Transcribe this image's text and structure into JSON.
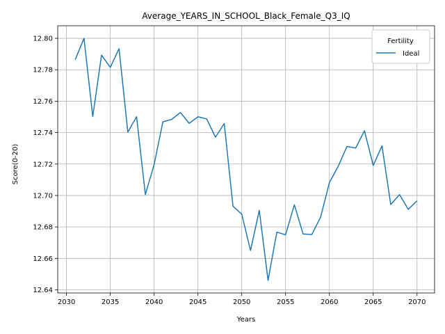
{
  "chart_data": {
    "type": "line",
    "title": "Average_YEARS_IN_SCHOOL_Black_Female_Q3_IQ",
    "xlabel": "Years",
    "ylabel": "Score(0-20)",
    "xlim": [
      2029,
      2072
    ],
    "ylim": [
      12.638,
      12.808
    ],
    "xticks": [
      2030,
      2035,
      2040,
      2045,
      2050,
      2055,
      2060,
      2065,
      2070
    ],
    "yticks": [
      12.64,
      12.66,
      12.68,
      12.7,
      12.72,
      12.74,
      12.76,
      12.78,
      12.8
    ],
    "xtick_labels": [
      "2030",
      "2035",
      "2040",
      "2045",
      "2050",
      "2055",
      "2060",
      "2065",
      "2070"
    ],
    "ytick_labels": [
      "12.64",
      "12.66",
      "12.68",
      "12.70",
      "12.72",
      "12.74",
      "12.76",
      "12.78",
      "12.80"
    ],
    "grid": true,
    "legend": {
      "title": "Fertility",
      "placement": "top-right"
    },
    "series": [
      {
        "name": "Ideal",
        "color": "#1f77b4",
        "x": [
          2031,
          2032,
          2033,
          2034,
          2035,
          2036,
          2037,
          2038,
          2039,
          2040,
          2041,
          2042,
          2043,
          2044,
          2045,
          2046,
          2047,
          2048,
          2049,
          2050,
          2051,
          2052,
          2053,
          2054,
          2055,
          2056,
          2057,
          2058,
          2059,
          2060,
          2061,
          2062,
          2063,
          2064,
          2065,
          2066,
          2067,
          2068,
          2069,
          2070
        ],
        "y": [
          12.7865,
          12.8,
          12.7502,
          12.7893,
          12.7815,
          12.7934,
          12.7403,
          12.7501,
          12.7006,
          12.7197,
          12.7469,
          12.7484,
          12.7528,
          12.7459,
          12.7501,
          12.7487,
          12.7371,
          12.7458,
          12.6932,
          12.6881,
          12.665,
          12.6906,
          12.646,
          12.6767,
          12.675,
          12.6941,
          12.6755,
          12.6752,
          12.6863,
          12.7082,
          12.7185,
          12.7312,
          12.7302,
          12.7412,
          12.7191,
          12.7316,
          12.6943,
          12.7006,
          12.6912,
          12.6966
        ]
      }
    ]
  }
}
